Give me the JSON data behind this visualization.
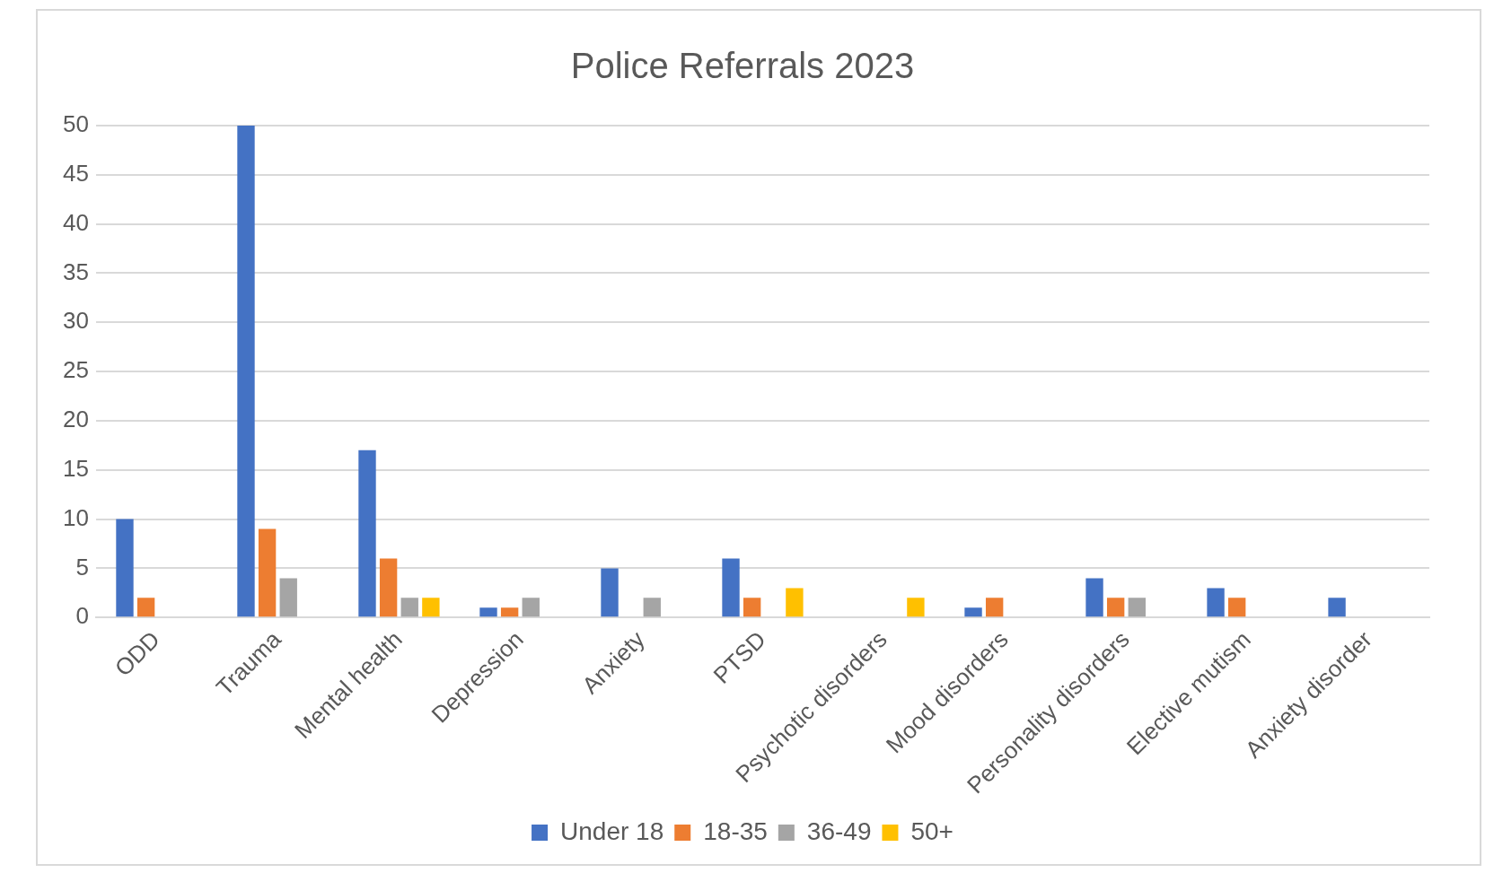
{
  "chart_data": {
    "type": "bar",
    "title": "Police Referrals 2023",
    "categories": [
      "ODD",
      "Trauma",
      "Mental health",
      "Depression",
      "Anxiety",
      "PTSD",
      "Psychotic disorders",
      "Mood disorders",
      "Personality disorders",
      "Elective mutism",
      "Anxiety disorder"
    ],
    "series": [
      {
        "name": "Under 18",
        "color": "#4472c4",
        "values": [
          10,
          50,
          17,
          1,
          5,
          6,
          null,
          1,
          4,
          3,
          2
        ]
      },
      {
        "name": "18-35",
        "color": "#ed7d31",
        "values": [
          2,
          9,
          6,
          1,
          null,
          2,
          null,
          2,
          2,
          2,
          null
        ]
      },
      {
        "name": "36-49",
        "color": "#a5a5a5",
        "values": [
          null,
          4,
          2,
          2,
          2,
          null,
          null,
          null,
          2,
          null,
          null
        ]
      },
      {
        "name": "50+",
        "color": "#ffc000",
        "values": [
          null,
          null,
          2,
          null,
          null,
          3,
          2,
          null,
          null,
          null,
          null
        ]
      }
    ],
    "ylim": [
      0,
      50
    ],
    "yticks": [
      0,
      5,
      10,
      15,
      20,
      25,
      30,
      35,
      40,
      45,
      50
    ],
    "grid": "y",
    "legend": "bottom"
  }
}
